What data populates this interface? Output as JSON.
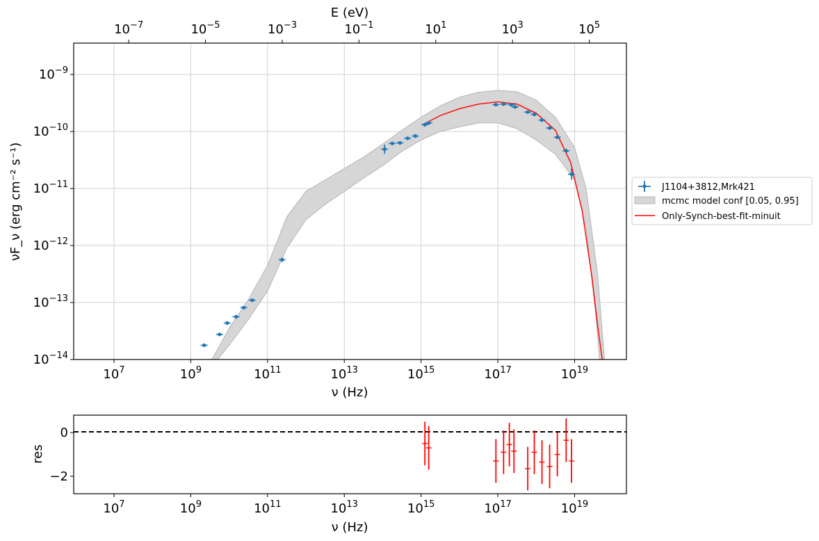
{
  "chart_data": [
    {
      "type": "scatter",
      "panel": "main",
      "xlabel": "ν  (Hz)",
      "ylabel": "νF_ν  (erg cm⁻² s⁻¹)",
      "top_xlabel": "E (eV)",
      "xscale": "log",
      "yscale": "log",
      "xlim_log10": [
        5.95,
        20.35
      ],
      "ylim_log10": [
        -14,
        -8.45
      ],
      "grid": true,
      "x_ticks": [
        "10^7",
        "10^9",
        "10^11",
        "10^13",
        "10^15",
        "10^17",
        "10^19"
      ],
      "y_ticks": [
        "10^-14",
        "10^-13",
        "10^-12",
        "10^-11",
        "10^-10",
        "10^-9"
      ],
      "top_ticks": [
        "10^-7",
        "10^-5",
        "10^-3",
        "10^-1",
        "10^1",
        "10^3",
        "10^5"
      ],
      "legend_position": "outside-right",
      "legend": {
        "data": "J1104+3812,Mrk421",
        "band": "mcmc model conf [0.05, 0.95]",
        "model": "Only-Synch-best-fit-minuit"
      },
      "colors": {
        "data": "#1f77b4",
        "band": "#d6d6d6",
        "model": "#ff0000",
        "residual": "#ff0000"
      },
      "data_points": [
        {
          "log_nu": 9.35,
          "log_nuFnu": -13.75,
          "yerr": 0.02
        },
        {
          "log_nu": 9.75,
          "log_nuFnu": -13.56,
          "yerr": 0.02
        },
        {
          "log_nu": 9.95,
          "log_nuFnu": -13.36,
          "yerr": 0.02
        },
        {
          "log_nu": 10.18,
          "log_nuFnu": -13.25,
          "yerr": 0.02
        },
        {
          "log_nu": 10.38,
          "log_nuFnu": -13.09,
          "yerr": 0.02
        },
        {
          "log_nu": 10.6,
          "log_nuFnu": -12.96,
          "yerr": 0.02
        },
        {
          "log_nu": 11.38,
          "log_nuFnu": -12.25,
          "yerr": 0.04
        },
        {
          "log_nu": 14.05,
          "log_nuFnu": -10.31,
          "yerr": 0.08
        },
        {
          "log_nu": 14.25,
          "log_nuFnu": -10.21,
          "yerr": 0.03
        },
        {
          "log_nu": 14.45,
          "log_nuFnu": -10.2,
          "yerr": 0.03
        },
        {
          "log_nu": 14.65,
          "log_nuFnu": -10.12,
          "yerr": 0.03
        },
        {
          "log_nu": 14.85,
          "log_nuFnu": -10.08,
          "yerr": 0.03
        },
        {
          "log_nu": 15.1,
          "log_nuFnu": -9.88,
          "yerr": 0.03
        },
        {
          "log_nu": 15.2,
          "log_nuFnu": -9.85,
          "yerr": 0.03
        },
        {
          "log_nu": 16.95,
          "log_nuFnu": -9.53,
          "yerr": 0.02
        },
        {
          "log_nu": 17.15,
          "log_nuFnu": -9.52,
          "yerr": 0.02
        },
        {
          "log_nu": 17.35,
          "log_nuFnu": -9.53,
          "yerr": 0.02
        },
        {
          "log_nu": 17.45,
          "log_nuFnu": -9.57,
          "yerr": 0.02
        },
        {
          "log_nu": 17.78,
          "log_nuFnu": -9.66,
          "yerr": 0.02
        },
        {
          "log_nu": 17.95,
          "log_nuFnu": -9.7,
          "yerr": 0.02
        },
        {
          "log_nu": 18.15,
          "log_nuFnu": -9.8,
          "yerr": 0.03
        },
        {
          "log_nu": 18.35,
          "log_nuFnu": -9.94,
          "yerr": 0.03
        },
        {
          "log_nu": 18.55,
          "log_nuFnu": -10.1,
          "yerr": 0.03
        },
        {
          "log_nu": 18.78,
          "log_nuFnu": -10.34,
          "yerr": 0.04
        },
        {
          "log_nu": 18.92,
          "log_nuFnu": -10.75,
          "yerr": 0.1
        }
      ],
      "band_upper": [
        [
          9.55,
          -14.0
        ],
        [
          10.0,
          -13.45
        ],
        [
          10.5,
          -12.95
        ],
        [
          11.0,
          -12.35
        ],
        [
          11.5,
          -11.5
        ],
        [
          12.0,
          -11.05
        ],
        [
          12.5,
          -10.85
        ],
        [
          13.0,
          -10.65
        ],
        [
          13.5,
          -10.45
        ],
        [
          14.0,
          -10.22
        ],
        [
          14.5,
          -9.98
        ],
        [
          15.0,
          -9.75
        ],
        [
          15.5,
          -9.55
        ],
        [
          16.0,
          -9.4
        ],
        [
          16.5,
          -9.31
        ],
        [
          17.0,
          -9.28
        ],
        [
          17.5,
          -9.3
        ],
        [
          18.0,
          -9.45
        ],
        [
          18.5,
          -9.75
        ],
        [
          19.0,
          -10.28
        ],
        [
          19.3,
          -11.0
        ],
        [
          19.6,
          -12.5
        ],
        [
          19.78,
          -14.0
        ]
      ],
      "band_lower": [
        [
          9.7,
          -14.0
        ],
        [
          10.0,
          -13.75
        ],
        [
          10.5,
          -13.3
        ],
        [
          11.0,
          -12.8
        ],
        [
          11.5,
          -12.05
        ],
        [
          12.0,
          -11.55
        ],
        [
          12.5,
          -11.28
        ],
        [
          13.0,
          -11.05
        ],
        [
          13.5,
          -10.82
        ],
        [
          14.0,
          -10.6
        ],
        [
          14.5,
          -10.35
        ],
        [
          15.0,
          -10.15
        ],
        [
          15.5,
          -10.0
        ],
        [
          16.0,
          -9.92
        ],
        [
          16.5,
          -9.85
        ],
        [
          17.0,
          -9.85
        ],
        [
          17.5,
          -9.95
        ],
        [
          18.0,
          -10.15
        ],
        [
          18.5,
          -10.4
        ],
        [
          19.0,
          -10.85
        ],
        [
          19.3,
          -11.7
        ],
        [
          19.55,
          -13.2
        ],
        [
          19.65,
          -14.0
        ]
      ],
      "model_curve": [
        [
          15.05,
          -9.88
        ],
        [
          15.5,
          -9.72
        ],
        [
          16.0,
          -9.6
        ],
        [
          16.5,
          -9.52
        ],
        [
          17.0,
          -9.48
        ],
        [
          17.5,
          -9.52
        ],
        [
          18.0,
          -9.68
        ],
        [
          18.5,
          -9.98
        ],
        [
          18.9,
          -10.55
        ],
        [
          19.2,
          -11.4
        ],
        [
          19.45,
          -12.55
        ],
        [
          19.6,
          -13.4
        ],
        [
          19.72,
          -14.0
        ]
      ]
    },
    {
      "type": "scatter",
      "panel": "residuals",
      "xlabel": "ν  (Hz)",
      "ylabel": "res",
      "xscale": "log",
      "xlim_log10": [
        5.95,
        20.35
      ],
      "ylim": [
        -2.8,
        0.8
      ],
      "y_ticks": [
        "0",
        "−2"
      ],
      "x_ticks": [
        "10^7",
        "10^9",
        "10^11",
        "10^13",
        "10^15",
        "10^17",
        "10^19"
      ],
      "zero_line": true,
      "points": [
        {
          "log_nu": 15.1,
          "res": -0.5,
          "yerr": 1.0
        },
        {
          "log_nu": 15.2,
          "res": -0.7,
          "yerr": 1.0
        },
        {
          "log_nu": 16.95,
          "res": -1.3,
          "yerr": 1.0
        },
        {
          "log_nu": 17.15,
          "res": -0.9,
          "yerr": 1.0
        },
        {
          "log_nu": 17.3,
          "res": -0.55,
          "yerr": 1.0
        },
        {
          "log_nu": 17.42,
          "res": -0.85,
          "yerr": 1.0
        },
        {
          "log_nu": 17.78,
          "res": -1.65,
          "yerr": 1.0
        },
        {
          "log_nu": 17.95,
          "res": -0.9,
          "yerr": 1.0
        },
        {
          "log_nu": 18.15,
          "res": -1.35,
          "yerr": 1.0
        },
        {
          "log_nu": 18.35,
          "res": -1.55,
          "yerr": 1.0
        },
        {
          "log_nu": 18.55,
          "res": -1.0,
          "yerr": 1.0
        },
        {
          "log_nu": 18.78,
          "res": -0.35,
          "yerr": 1.0
        },
        {
          "log_nu": 18.92,
          "res": -1.3,
          "yerr": 1.0
        }
      ]
    }
  ]
}
